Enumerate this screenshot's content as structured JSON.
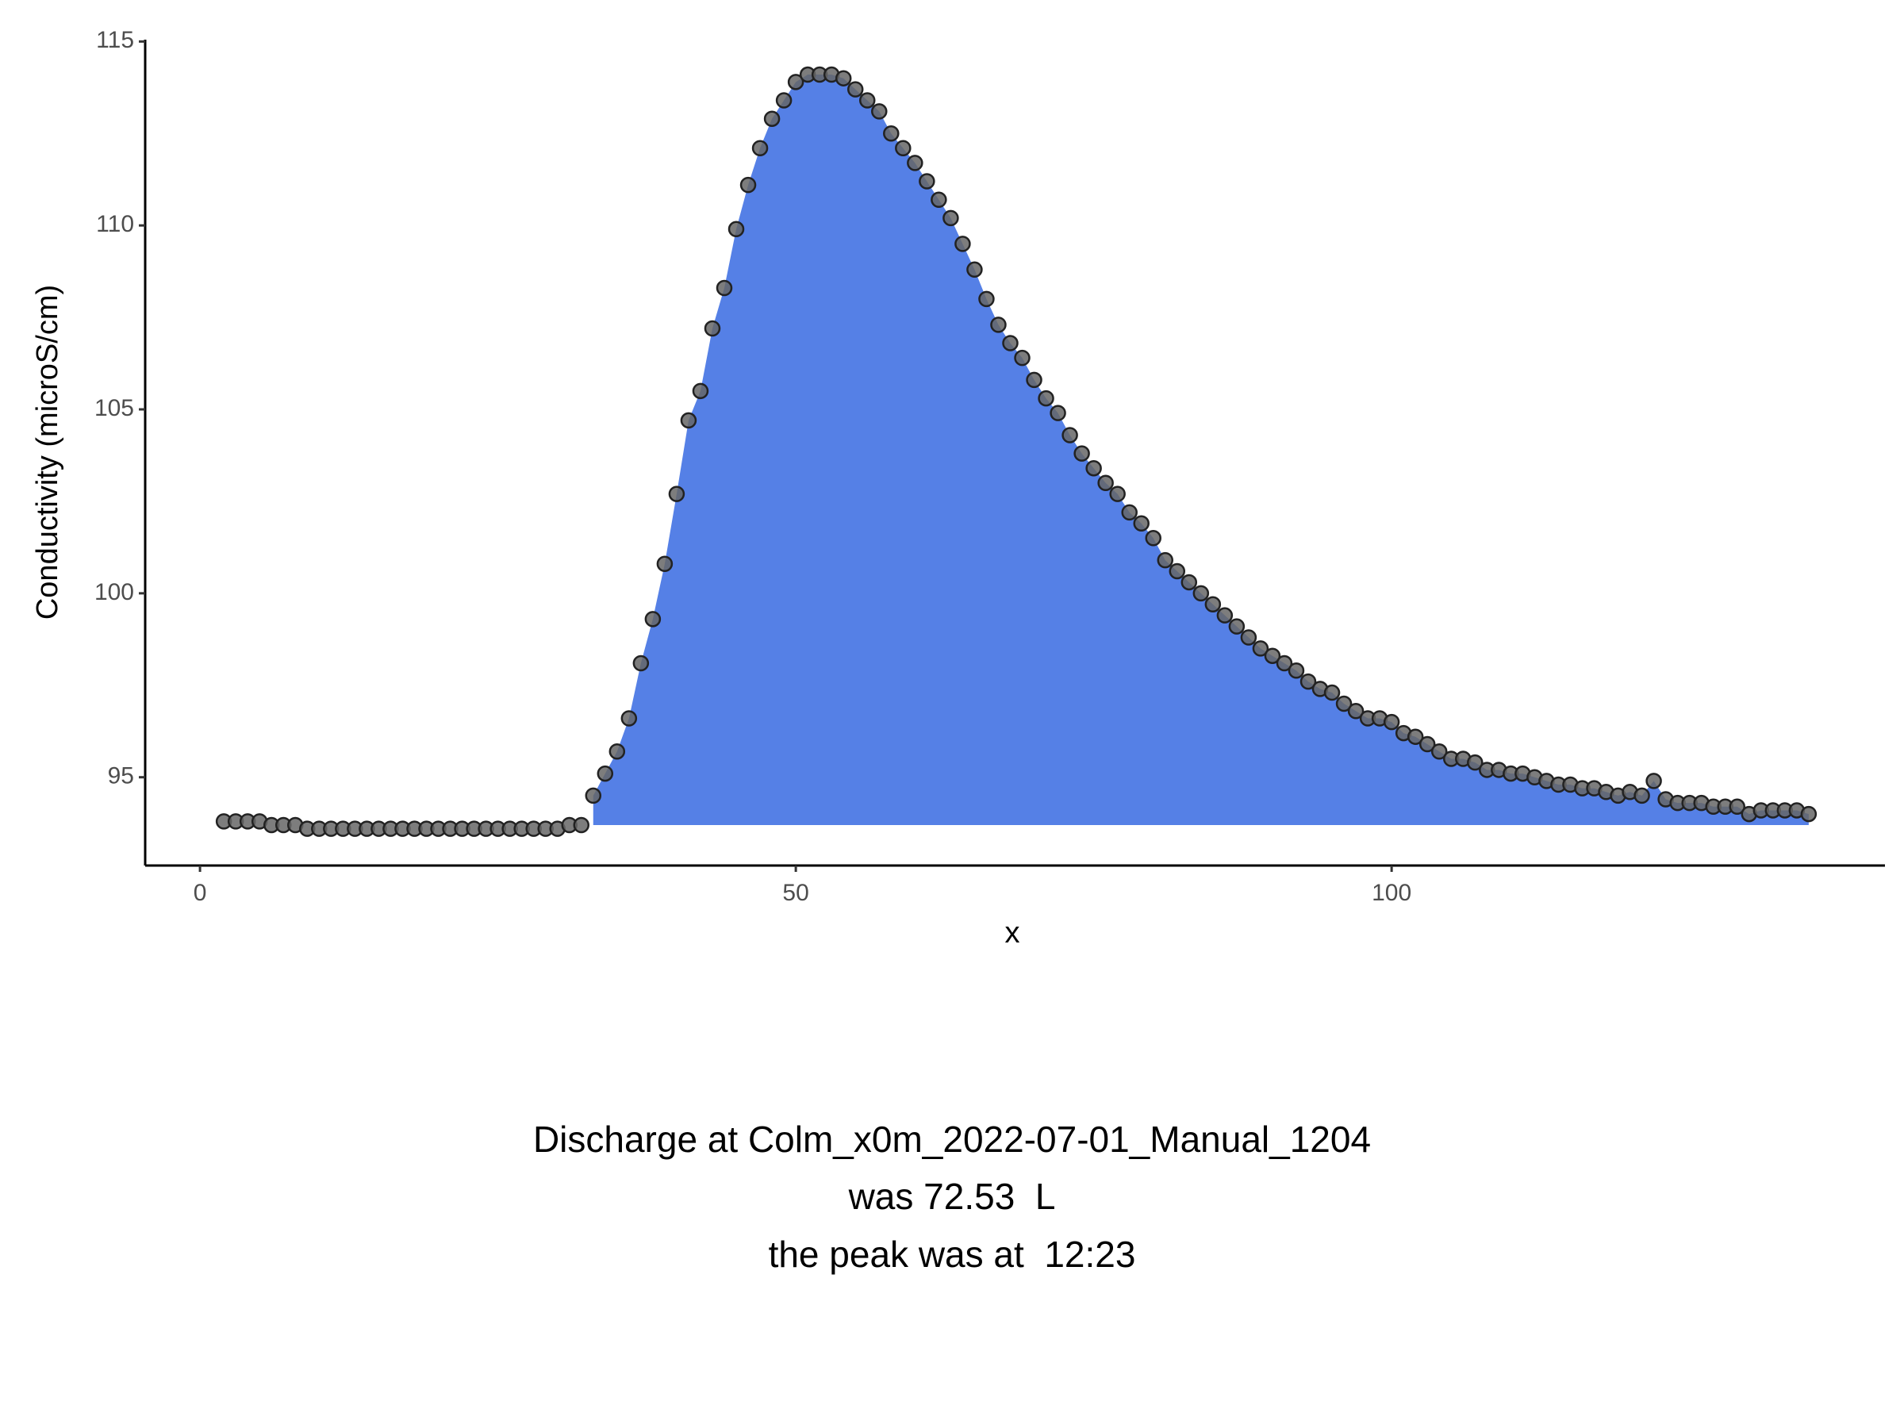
{
  "chart_data": {
    "type": "scatter",
    "x_label": "x",
    "y_label": "Conductivity (microS/cm)",
    "caption": [
      "Discharge at Colm_x0m_2022-07-01_Manual_1204",
      "was 72.53  L",
      "the peak was at  12:23"
    ],
    "xlim": [
      -4.6,
      141.4
    ],
    "ylim": [
      92.6,
      115.05
    ],
    "xticks": [
      0,
      50,
      100
    ],
    "yticks": [
      95,
      100,
      105,
      110,
      115
    ],
    "point_color": "#666666",
    "area": {
      "color": "#5580e6",
      "x_start": 33,
      "baseline": 93.7
    },
    "x": [
      2,
      3,
      4,
      5,
      6,
      7,
      8,
      9,
      10,
      11,
      12,
      13,
      14,
      15,
      16,
      17,
      18,
      19,
      20,
      21,
      22,
      23,
      24,
      25,
      26,
      27,
      28,
      29,
      30,
      31,
      32,
      33,
      34,
      35,
      36,
      37,
      38,
      39,
      40,
      41,
      42,
      43,
      44,
      45,
      46,
      47,
      48,
      49,
      50,
      51,
      52,
      53,
      54,
      55,
      56,
      57,
      58,
      59,
      60,
      61,
      62,
      63,
      64,
      65,
      66,
      67,
      68,
      69,
      70,
      71,
      72,
      73,
      74,
      75,
      76,
      77,
      78,
      79,
      80,
      81,
      82,
      83,
      84,
      85,
      86,
      87,
      88,
      89,
      90,
      91,
      92,
      93,
      94,
      95,
      96,
      97,
      98,
      99,
      100,
      101,
      102,
      103,
      104,
      105,
      106,
      107,
      108,
      109,
      110,
      111,
      112,
      113,
      114,
      115,
      116,
      117,
      118,
      119,
      120,
      121,
      122,
      123,
      124,
      125,
      126,
      127,
      128,
      129,
      130,
      131,
      132,
      133,
      134,
      135
    ],
    "values": [
      93.8,
      93.8,
      93.8,
      93.8,
      93.7,
      93.7,
      93.7,
      93.6,
      93.6,
      93.6,
      93.6,
      93.6,
      93.6,
      93.6,
      93.6,
      93.6,
      93.6,
      93.6,
      93.6,
      93.6,
      93.6,
      93.6,
      93.6,
      93.6,
      93.6,
      93.6,
      93.6,
      93.6,
      93.6,
      93.7,
      93.7,
      94.5,
      95.1,
      95.7,
      96.6,
      98.1,
      99.3,
      100.8,
      102.7,
      104.7,
      105.5,
      107.2,
      108.3,
      109.9,
      111.1,
      112.1,
      112.9,
      113.4,
      113.9,
      114.1,
      114.1,
      114.1,
      114.0,
      113.7,
      113.4,
      113.1,
      112.5,
      112.1,
      111.7,
      111.2,
      110.7,
      110.2,
      109.5,
      108.8,
      108.0,
      107.3,
      106.8,
      106.4,
      105.8,
      105.3,
      104.9,
      104.3,
      103.8,
      103.4,
      103.0,
      102.7,
      102.2,
      101.9,
      101.5,
      100.9,
      100.6,
      100.3,
      100.0,
      99.7,
      99.4,
      99.1,
      98.8,
      98.5,
      98.3,
      98.1,
      97.9,
      97.6,
      97.4,
      97.3,
      97.0,
      96.8,
      96.6,
      96.6,
      96.5,
      96.2,
      96.1,
      95.9,
      95.7,
      95.5,
      95.5,
      95.4,
      95.2,
      95.2,
      95.1,
      95.1,
      95.0,
      94.9,
      94.8,
      94.8,
      94.7,
      94.7,
      94.6,
      94.5,
      94.6,
      94.5,
      94.9,
      94.4,
      94.3,
      94.3,
      94.3,
      94.2,
      94.2,
      94.2,
      94.0,
      94.1,
      94.1,
      94.1,
      94.1,
      94.0
    ]
  }
}
